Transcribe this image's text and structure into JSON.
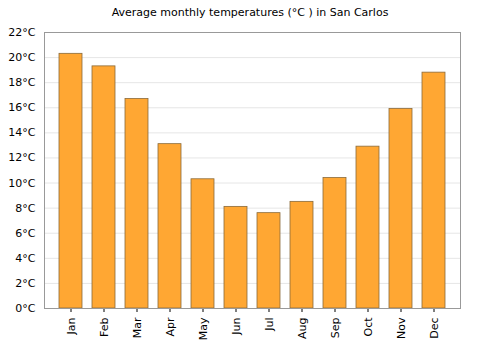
{
  "chart_data": {
    "type": "bar",
    "title": "Average monthly temperatures (°C ) in San Carlos",
    "categories": [
      "Jan",
      "Feb",
      "Mar",
      "Apr",
      "May",
      "Jun",
      "Jul",
      "Aug",
      "Sep",
      "Oct",
      "Nov",
      "Dec"
    ],
    "values": [
      20.3,
      19.3,
      16.7,
      13.1,
      10.3,
      8.1,
      7.6,
      8.5,
      10.4,
      12.9,
      15.9,
      18.8
    ],
    "color": "#ffa733",
    "ylim": [
      0,
      22
    ],
    "yticks": [
      {
        "value": 0,
        "label": "0°C"
      },
      {
        "value": 2,
        "label": "2°C"
      },
      {
        "value": 4,
        "label": "4°C"
      },
      {
        "value": 6,
        "label": "6°C"
      },
      {
        "value": 8,
        "label": "8°C"
      },
      {
        "value": 10,
        "label": "10°C"
      },
      {
        "value": 12,
        "label": "12°C"
      },
      {
        "value": 14,
        "label": "14°C"
      },
      {
        "value": 16,
        "label": "16°C"
      },
      {
        "value": 18,
        "label": "18°C"
      },
      {
        "value": 20,
        "label": "20°C"
      },
      {
        "value": 22,
        "label": "22°C"
      }
    ],
    "grid": true
  }
}
